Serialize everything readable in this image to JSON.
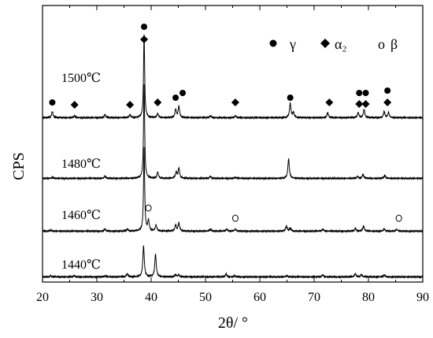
{
  "chart_data": {
    "type": "line",
    "title": "",
    "xlabel": "2θ/ °",
    "ylabel": "CPS",
    "xlim": [
      20,
      90
    ],
    "x_ticks": [
      20,
      30,
      40,
      50,
      60,
      70,
      80,
      90
    ],
    "grid": false,
    "legend": {
      "placement": "top-right",
      "entries": [
        {
          "marker": "filled-circle",
          "label": "γ"
        },
        {
          "marker": "filled-diamond",
          "label": "α₂"
        },
        {
          "marker": "open-circle",
          "label": "β"
        }
      ]
    },
    "series": [
      {
        "name": "1500℃",
        "baseline": 0.02,
        "peaks": [
          [
            21.8,
            0.06
          ],
          [
            25.9,
            0.02
          ],
          [
            31.5,
            0.03
          ],
          [
            36.1,
            0.03
          ],
          [
            38.7,
            0.82
          ],
          [
            41.2,
            0.04
          ],
          [
            44.5,
            0.08
          ],
          [
            45.1,
            0.11
          ],
          [
            50.9,
            0.02
          ],
          [
            55.5,
            0.02
          ],
          [
            65.6,
            0.14
          ],
          [
            66.2,
            0.05
          ],
          [
            72.5,
            0.05
          ],
          [
            78.1,
            0.05
          ],
          [
            79.2,
            0.08
          ],
          [
            82.9,
            0.06
          ],
          [
            83.7,
            0.05
          ]
        ],
        "markers": {
          "gamma": [
            21.8,
            38.7,
            44.5,
            45.8,
            65.6,
            78.3,
            79.5,
            83.5
          ],
          "alpha2": [
            25.9,
            36.1,
            38.7,
            41.2,
            55.5,
            72.8,
            78.3,
            79.5,
            83.5
          ]
        }
      },
      {
        "name": "1480℃",
        "baseline": 0.02,
        "peaks": [
          [
            21.8,
            0.01
          ],
          [
            31.5,
            0.02
          ],
          [
            38.7,
            0.92
          ],
          [
            41.2,
            0.06
          ],
          [
            44.6,
            0.06
          ],
          [
            45.1,
            0.1
          ],
          [
            50.9,
            0.02
          ],
          [
            55.5,
            0.01
          ],
          [
            65.3,
            0.19
          ],
          [
            78.0,
            0.02
          ],
          [
            79.0,
            0.04
          ],
          [
            83.0,
            0.03
          ]
        ],
        "markers": {}
      },
      {
        "name": "1460℃",
        "baseline": 0.02,
        "peaks": [
          [
            21.5,
            0.01
          ],
          [
            31.5,
            0.02
          ],
          [
            35.6,
            0.02
          ],
          [
            38.7,
            0.82
          ],
          [
            39.5,
            0.1
          ],
          [
            40.9,
            0.06
          ],
          [
            44.5,
            0.06
          ],
          [
            45.1,
            0.08
          ],
          [
            50.9,
            0.02
          ],
          [
            53.9,
            0.02
          ],
          [
            55.5,
            0.02
          ],
          [
            64.9,
            0.05
          ],
          [
            65.6,
            0.03
          ],
          [
            71.6,
            0.02
          ],
          [
            77.6,
            0.03
          ],
          [
            79.1,
            0.05
          ],
          [
            82.9,
            0.02
          ],
          [
            85.2,
            0.02
          ]
        ],
        "markers": {
          "beta": [
            39.5,
            55.5,
            85.6
          ]
        }
      },
      {
        "name": "1440℃",
        "baseline": 0.02,
        "peaks": [
          [
            21.5,
            0.01
          ],
          [
            25.8,
            0.01
          ],
          [
            31.5,
            0.01
          ],
          [
            35.6,
            0.03
          ],
          [
            38.6,
            0.3
          ],
          [
            40.8,
            0.22
          ],
          [
            44.5,
            0.02
          ],
          [
            45.1,
            0.02
          ],
          [
            53.8,
            0.03
          ],
          [
            55.4,
            0.01
          ],
          [
            65.0,
            0.01
          ],
          [
            71.6,
            0.02
          ],
          [
            77.6,
            0.03
          ],
          [
            78.7,
            0.02
          ],
          [
            82.9,
            0.02
          ]
        ],
        "markers": {}
      }
    ]
  },
  "legend_symbols": {
    "gamma": "●",
    "alpha2": "◆",
    "beta": "o"
  }
}
